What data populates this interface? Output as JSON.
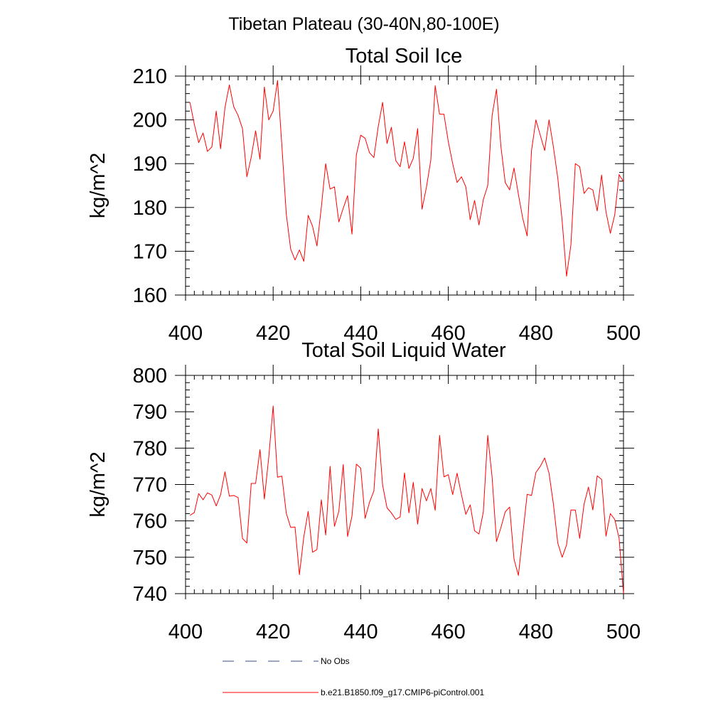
{
  "figure": {
    "main_title": "Tibetan Plateau (30-40N,80-100E)"
  },
  "legend": {
    "entries": [
      {
        "label": "No Obs",
        "color": "#3b4a8a",
        "style": "dashed"
      },
      {
        "label": "b.e21.B1850.f09_g17.CMIP6-piControl.001",
        "color": "#ff0000",
        "style": "solid"
      }
    ]
  },
  "chart_data": [
    {
      "type": "line",
      "title": "Total Soil Ice",
      "xlabel": "",
      "ylabel": "kg/m^2",
      "xlim": [
        400,
        500
      ],
      "ylim": [
        160,
        210
      ],
      "xticks": [
        400,
        420,
        440,
        460,
        480,
        500
      ],
      "yticks": [
        160,
        170,
        180,
        190,
        200,
        210
      ],
      "grid": false,
      "series": [
        {
          "color": "#ff0000",
          "x_start": 401,
          "x_step": 1,
          "values": [
            204.0,
            199.0,
            194.8,
            197.0,
            192.8,
            193.8,
            202.0,
            193.4,
            202.8,
            208.0,
            203.0,
            201.0,
            198.0,
            187.0,
            191.5,
            197.5,
            191.0,
            207.5,
            200.0,
            202.0,
            209.0,
            194.0,
            178.5,
            170.5,
            168.0,
            170.3,
            167.7,
            178.2,
            175.7,
            171.2,
            180.0,
            190.0,
            184.2,
            184.7,
            176.7,
            179.8,
            182.7,
            173.9,
            192.0,
            196.5,
            195.8,
            192.5,
            191.4,
            198.5,
            204.0,
            194.6,
            198.3,
            190.7,
            189.3,
            195.0,
            188.9,
            191.2,
            198.0,
            179.6,
            184.6,
            190.8,
            207.8,
            201.3,
            201.3,
            195.0,
            190.0,
            185.7,
            187.0,
            184.7,
            177.2,
            181.6,
            176.0,
            181.8,
            185.0,
            201.0,
            207.0,
            194.0,
            185.7,
            184.0,
            189.0,
            183.0,
            177.5,
            173.5,
            193.0,
            200.0,
            196.5,
            193.0,
            200.0,
            193.8,
            186.7,
            176.9,
            164.3,
            171.5,
            190.0,
            189.3,
            183.2,
            184.5,
            184.0,
            179.2,
            187.4,
            179.0,
            174.1,
            178.3,
            187.5,
            185.9
          ]
        }
      ]
    },
    {
      "type": "line",
      "title": "Total Soil Liquid Water",
      "xlabel": "",
      "ylabel": "kg/m^2",
      "xlim": [
        400,
        500
      ],
      "ylim": [
        740,
        800
      ],
      "xticks": [
        400,
        420,
        440,
        460,
        480,
        500
      ],
      "yticks": [
        740,
        750,
        760,
        770,
        780,
        790,
        800
      ],
      "grid": false,
      "series": [
        {
          "color": "#ff0000",
          "x_start": 401,
          "x_step": 1,
          "values": [
            761.5,
            762.3,
            767.5,
            765.8,
            767.7,
            767.1,
            764.1,
            767.2,
            773.5,
            766.8,
            767.0,
            766.4,
            755.2,
            753.9,
            770.3,
            770.3,
            779.6,
            766.0,
            777.5,
            791.6,
            772.0,
            772.3,
            762.1,
            758.2,
            758.3,
            745.2,
            755.6,
            762.6,
            751.4,
            752.1,
            765.8,
            756.1,
            775.0,
            758.5,
            762.6,
            775.5,
            755.7,
            761.3,
            775.6,
            774.5,
            760.7,
            765.1,
            768.2,
            785.3,
            769.8,
            763.6,
            762.2,
            760.4,
            761.1,
            773.2,
            762.2,
            770.6,
            759.1,
            768.9,
            765.5,
            768.9,
            762.9,
            783.5,
            772.1,
            772.7,
            767.2,
            773.1,
            767.2,
            761.8,
            764.4,
            757.3,
            756.4,
            762.5,
            783.5,
            772.0,
            754.3,
            758.1,
            762.5,
            763.8,
            749.5,
            745.0,
            756.2,
            767.3,
            767.0,
            773.3,
            775.0,
            777.3,
            773.1,
            764.6,
            753.9,
            750.0,
            753.4,
            763.0,
            763.0,
            755.2,
            764.6,
            769.3,
            763.0,
            772.4,
            771.4,
            755.8,
            762.0,
            760.4,
            755.2,
            740.0
          ]
        }
      ]
    }
  ]
}
